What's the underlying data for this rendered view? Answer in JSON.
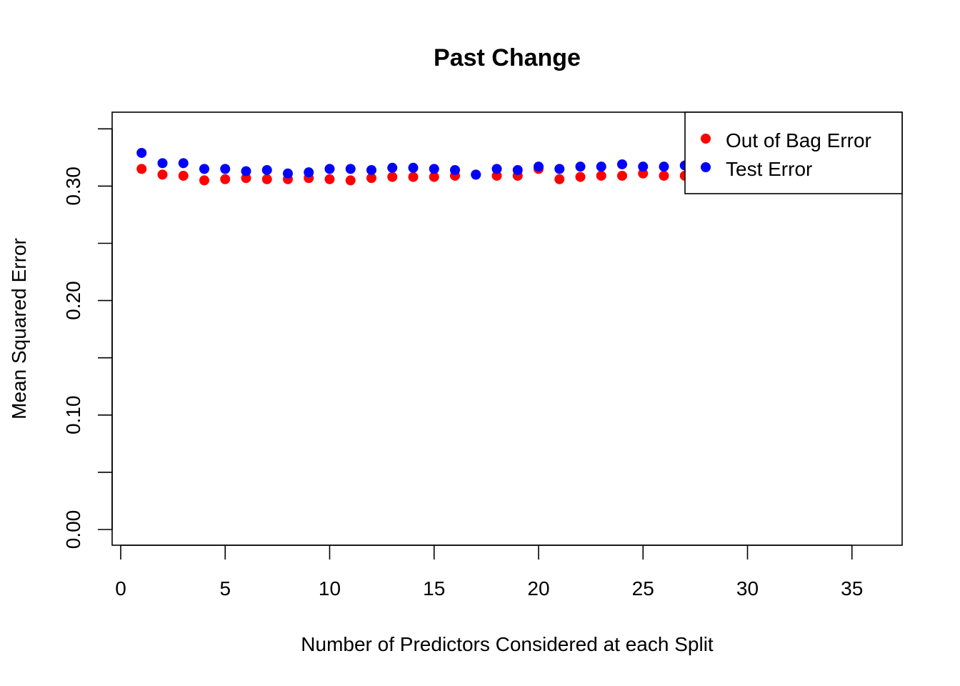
{
  "chart_data": {
    "type": "scatter",
    "title": "Past Change",
    "xlabel": "Number of Predictors Considered at each Split",
    "ylabel": "Mean Squared Error",
    "xlim": [
      0,
      37
    ],
    "ylim": [
      0,
      0.35
    ],
    "xticks": [
      0,
      5,
      10,
      15,
      20,
      25,
      30,
      35
    ],
    "yticks": [
      0.0,
      0.05,
      0.1,
      0.15,
      0.2,
      0.25,
      0.3,
      0.35
    ],
    "ytick_labels": [
      "0.00",
      "",
      "0.10",
      "",
      "0.20",
      "",
      "0.30",
      ""
    ],
    "grid": false,
    "legend_position": "top-right",
    "x": [
      1,
      2,
      3,
      4,
      5,
      6,
      7,
      8,
      9,
      10,
      11,
      12,
      13,
      14,
      15,
      16,
      17,
      18,
      19,
      20,
      21,
      22,
      23,
      24,
      25,
      26,
      27
    ],
    "series": [
      {
        "name": "Out of Bag Error",
        "color": "#ff0000",
        "values": [
          0.315,
          0.31,
          0.309,
          0.305,
          0.306,
          0.307,
          0.306,
          0.306,
          0.307,
          0.306,
          0.305,
          0.307,
          0.308,
          0.308,
          0.308,
          0.309,
          0.31,
          0.309,
          0.309,
          0.315,
          0.306,
          0.308,
          0.309,
          0.309,
          0.311,
          0.309,
          0.309
        ]
      },
      {
        "name": "Test Error",
        "color": "#0000ff",
        "values": [
          0.329,
          0.32,
          0.32,
          0.315,
          0.315,
          0.313,
          0.314,
          0.311,
          0.312,
          0.315,
          0.315,
          0.314,
          0.316,
          0.316,
          0.315,
          0.314,
          0.31,
          0.315,
          0.314,
          0.317,
          0.315,
          0.317,
          0.317,
          0.319,
          0.317,
          0.317,
          0.318
        ]
      }
    ]
  }
}
